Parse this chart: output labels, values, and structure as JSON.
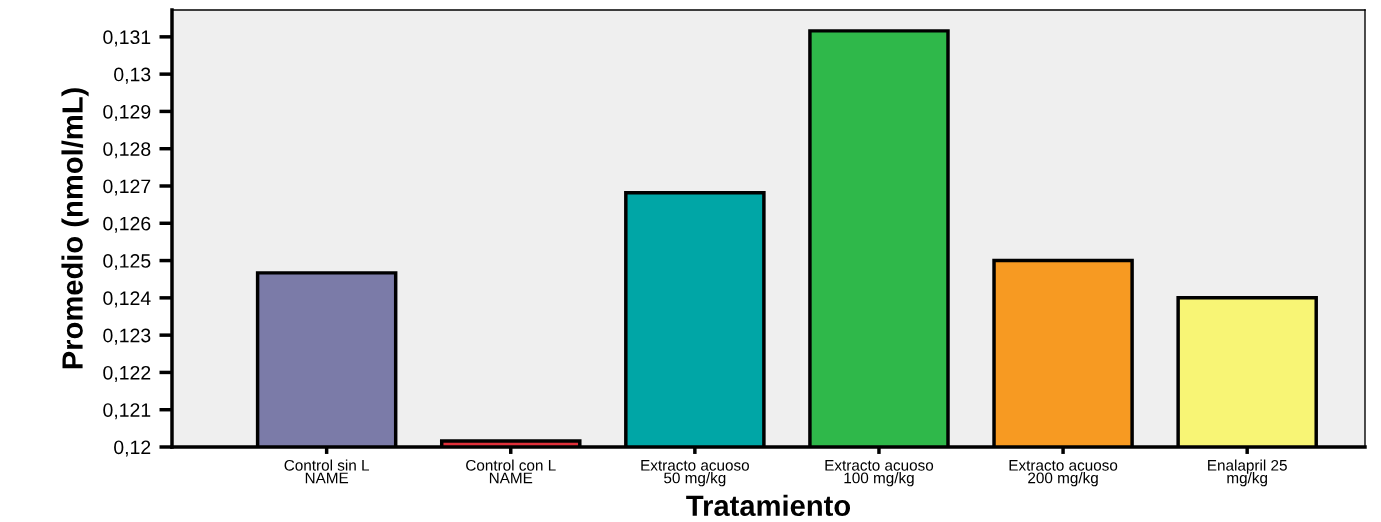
{
  "chart_data": {
    "type": "bar",
    "xlabel": "Tratamiento",
    "ylabel": "Promedio (nmol/mL)",
    "categories": [
      "Control sin L\nNAME",
      "Control con L\nNAME",
      "Extracto acuoso\n50 mg/kg",
      "Extracto acuoso\n100 mg/kg",
      "Extracto acuoso\n200 mg/kg",
      "Enalapril 25\nmg/kg"
    ],
    "values": [
      0.12467,
      0.12016,
      0.12682,
      0.13116,
      0.125,
      0.124
    ],
    "colors": [
      "#7b7ba8",
      "#e0303a",
      "#00a6a6",
      "#2fb84a",
      "#f79a22",
      "#f8f575"
    ],
    "ylim": [
      0.12,
      0.13172
    ],
    "yticks": [
      {
        "value": 0.12,
        "label": "0,12"
      },
      {
        "value": 0.121,
        "label": "0,121"
      },
      {
        "value": 0.122,
        "label": "0,122"
      },
      {
        "value": 0.123,
        "label": "0,123"
      },
      {
        "value": 0.124,
        "label": "0,124"
      },
      {
        "value": 0.125,
        "label": "0,125"
      },
      {
        "value": 0.126,
        "label": "0,126"
      },
      {
        "value": 0.127,
        "label": "0,127"
      },
      {
        "value": 0.128,
        "label": "0,128"
      },
      {
        "value": 0.129,
        "label": "0,129"
      },
      {
        "value": 0.13,
        "label": "0,13"
      },
      {
        "value": 0.131,
        "label": "0,131"
      }
    ],
    "grid": false,
    "legend": false
  }
}
